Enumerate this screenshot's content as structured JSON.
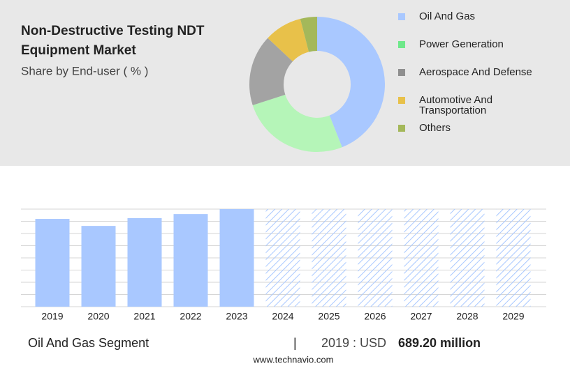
{
  "chart_data": [
    {
      "type": "pie",
      "title": [
        "Non-Destructive Testing NDT",
        "Equipment Market"
      ],
      "subtitle": "Share by End-user ( % )",
      "categories": [
        "Oil And Gas",
        "Power Generation",
        "Aerospace And Defense",
        "Automotive And Transportation",
        "Others"
      ],
      "legend_labels": [
        [
          "Oil And Gas"
        ],
        [
          "Power Generation"
        ],
        [
          "Aerospace And Defense"
        ],
        [
          "Automotive And",
          "Transportation"
        ],
        [
          "Others"
        ]
      ],
      "values": [
        44,
        26,
        17,
        9,
        4
      ],
      "colors": [
        "#a9c8ff",
        "#b5f5b8",
        "#a3a3a3",
        "#e8c14a",
        "#a4b85a"
      ],
      "legend_colors": [
        "#a9c8ff",
        "#6ee88a",
        "#8f8f8f",
        "#e8c14a",
        "#a4b85a"
      ]
    },
    {
      "type": "bar",
      "categories": [
        "2019",
        "2020",
        "2021",
        "2022",
        "2023",
        "2024",
        "2025",
        "2026",
        "2027",
        "2028",
        "2029"
      ],
      "values": [
        689.2,
        634,
        695,
        727,
        766,
        null,
        null,
        null,
        null,
        null,
        null
      ],
      "color": "#a9c8ff",
      "ylim": [
        0,
        766
      ],
      "grid": true
    }
  ],
  "footer": {
    "segment": "Oil And Gas Segment",
    "separator": "|",
    "year": "2019 : USD",
    "value": "689.20 million",
    "source": "www.technavio.com"
  }
}
